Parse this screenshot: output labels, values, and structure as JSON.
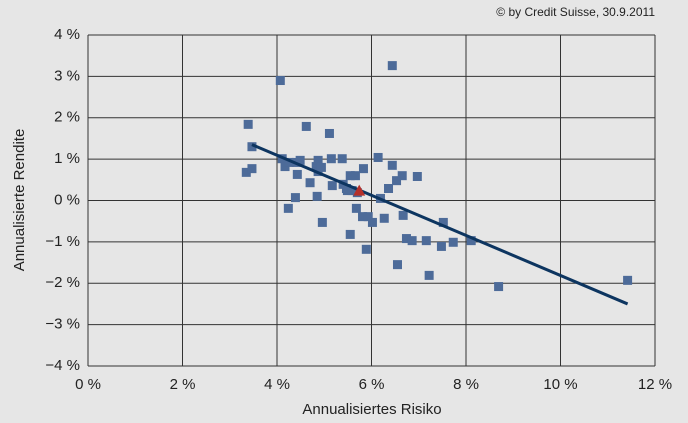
{
  "chart_data": {
    "type": "scatter",
    "source": "© by Credit Suisse, 30.9.2011",
    "x_label": "Annualisiertes Risiko",
    "y_label": "Annualisierte Rendite",
    "xlim": [
      0,
      12
    ],
    "ylim": [
      -4,
      4
    ],
    "xticks": [
      {
        "value": 0,
        "label": "0 %"
      },
      {
        "value": 2,
        "label": "2 %"
      },
      {
        "value": 4,
        "label": "4 %"
      },
      {
        "value": 6,
        "label": "6 %"
      },
      {
        "value": 8,
        "label": "8 %"
      },
      {
        "value": 10,
        "label": "10 %"
      },
      {
        "value": 12,
        "label": "12 %"
      }
    ],
    "yticks": [
      {
        "value": -4,
        "label": "−4 %"
      },
      {
        "value": -3,
        "label": "−3 %"
      },
      {
        "value": -2,
        "label": "−2 %"
      },
      {
        "value": -1,
        "label": "−1 %"
      },
      {
        "value": 0,
        "label": "0 %"
      },
      {
        "value": 1,
        "label": "1 %"
      },
      {
        "value": 2,
        "label": "2 %"
      },
      {
        "value": 3,
        "label": "3 %"
      },
      {
        "value": 4,
        "label": "4 %"
      }
    ],
    "grid": true,
    "series": [
      {
        "type": "scatter",
        "marker": "square",
        "color": "#4d6b99",
        "x": [
          3.39,
          3.47,
          4.07,
          6.44,
          4.62,
          5.11,
          3.35,
          3.47,
          4.11,
          4.17,
          4.26,
          4.41,
          4.49,
          4.43,
          4.24,
          4.39,
          4.7,
          4.83,
          4.87,
          4.87,
          4.94,
          4.85,
          4.96,
          5.15,
          5.17,
          5.38,
          5.4,
          5.47,
          5.55,
          5.49,
          5.59,
          5.66,
          5.55,
          5.68,
          5.7,
          5.81,
          5.83,
          5.93,
          5.89,
          6.02,
          6.14,
          6.19,
          6.27,
          6.36,
          6.44,
          6.53,
          6.55,
          6.65,
          6.67,
          6.74,
          6.86,
          6.97,
          7.16,
          7.22,
          7.48,
          7.52,
          7.73,
          8.11,
          8.69,
          11.42
        ],
        "values": [
          1.84,
          1.3,
          2.9,
          3.26,
          1.79,
          1.62,
          0.68,
          0.77,
          1.01,
          0.82,
          0.92,
          0.92,
          0.97,
          0.63,
          -0.19,
          0.07,
          0.43,
          0.82,
          0.97,
          0.7,
          0.8,
          0.1,
          -0.53,
          1.01,
          0.36,
          1.01,
          0.39,
          0.29,
          0.6,
          0.24,
          0.24,
          0.6,
          -0.82,
          -0.19,
          0.19,
          -0.39,
          0.77,
          -0.39,
          -1.18,
          -0.53,
          1.04,
          0.05,
          -0.43,
          0.29,
          0.85,
          0.48,
          -1.55,
          0.6,
          -0.36,
          -0.92,
          -0.97,
          0.58,
          -0.97,
          -1.81,
          -1.11,
          -0.53,
          -1.01,
          -0.97,
          -2.08,
          -1.93
        ]
      },
      {
        "type": "scatter",
        "marker": "triangle",
        "color": "#b5302a",
        "x": [
          5.74
        ],
        "values": [
          0.24
        ]
      },
      {
        "type": "line",
        "color": "#0d3560",
        "x": [
          3.47,
          11.42
        ],
        "values": [
          1.35,
          -2.5
        ]
      }
    ]
  }
}
